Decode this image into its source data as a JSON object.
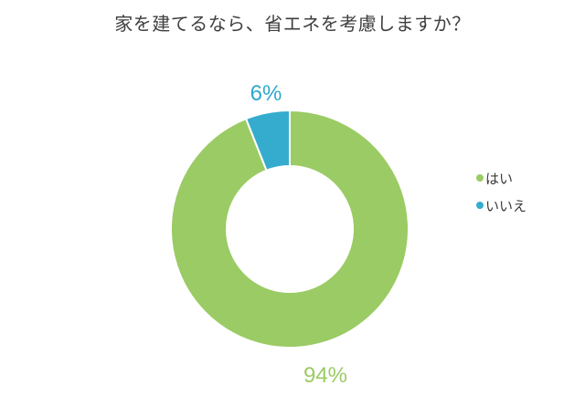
{
  "title": "家を建てるなら、省エネを考慮しますか？",
  "chart_data": {
    "type": "pie",
    "subtype": "donut",
    "title": "家を建てるなら、省エネを考慮しますか？",
    "categories": [
      "はい",
      "いいえ"
    ],
    "values": [
      94,
      6
    ],
    "unit": "%",
    "colors": [
      "#9bcb64",
      "#35accd"
    ],
    "slice_names": [
      "yes",
      "no"
    ],
    "data_labels": [
      "94%",
      "6%"
    ],
    "start_angle_deg": 0,
    "direction": "clockwise",
    "hole_ratio": 0.53,
    "legend_position": "right",
    "background": "#ffffff",
    "slice_border_color": "#ffffff"
  },
  "percent_labels": {
    "yes": "94%",
    "no": "6%"
  },
  "legend": {
    "items": [
      {
        "label": "はい",
        "color": "#9bcb64"
      },
      {
        "label": "いいえ",
        "color": "#35accd"
      }
    ]
  },
  "colors": {
    "title_text": "#3f3f3f",
    "legend_text": "#3b3b3b",
    "yes_green": "#9bcb64",
    "no_blue": "#2fa7ce",
    "background": "#ffffff"
  }
}
